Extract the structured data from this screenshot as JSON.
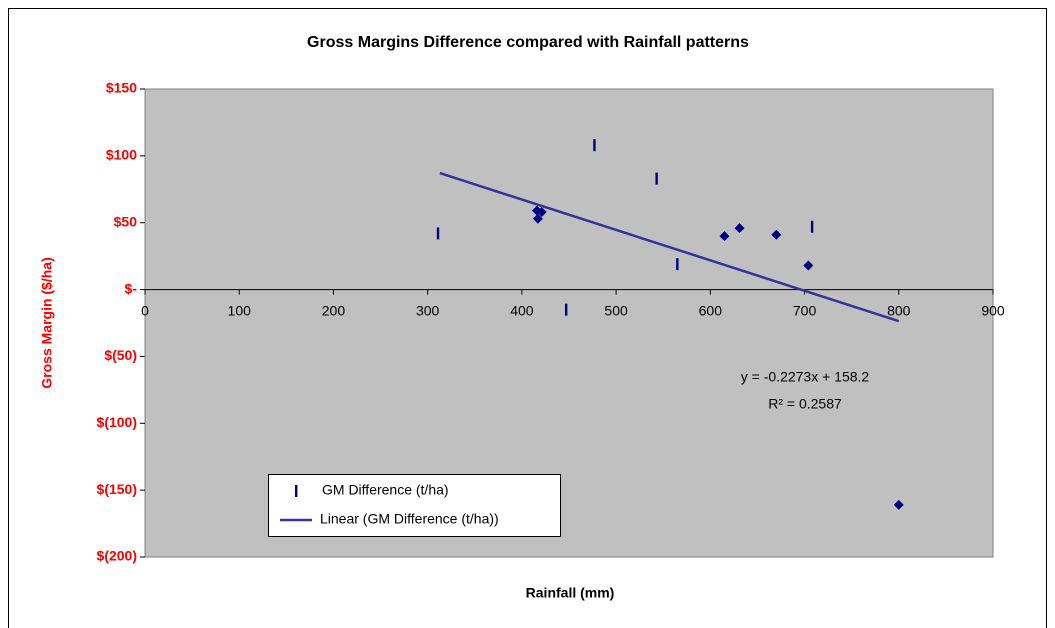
{
  "chart_data": {
    "type": "scatter",
    "title": "Gross Margins Difference compared with Rainfall patterns",
    "x_label": "Rainfall (mm)",
    "y_label": "Gross Margin ($/ha)",
    "series": [
      {
        "name": "GM Difference (t/ha)",
        "color": "#000080",
        "x": [
          311,
          416,
          421,
          417,
          447,
          477,
          543,
          565,
          615,
          631,
          670,
          704,
          708,
          800
        ],
        "values": [
          42,
          59,
          58,
          53,
          -15,
          108,
          83,
          19,
          40,
          46,
          41,
          18,
          47,
          -161
        ],
        "markers": [
          "dash",
          "diamond",
          "diamond",
          "diamond",
          "dash",
          "dash",
          "dash",
          "dash",
          "diamond",
          "diamond",
          "diamond",
          "diamond",
          "dash",
          "diamond"
        ]
      }
    ],
    "trendline": {
      "name": "Linear (GM Difference (t/ha))",
      "color": "#333399",
      "x": [
        313,
        800
      ],
      "values": [
        87.1,
        -23.6
      ]
    },
    "annotations": [
      "y = -0.2273x + 158.2",
      "R² = 0.2587"
    ],
    "xlim": [
      0,
      900
    ],
    "xticks": [
      0,
      100,
      200,
      300,
      400,
      500,
      600,
      700,
      800,
      900
    ],
    "ylim": [
      -200,
      150
    ],
    "yticks": [
      {
        "value": 150,
        "label": "$150"
      },
      {
        "value": 100,
        "label": "$100"
      },
      {
        "value": 50,
        "label": "$50"
      },
      {
        "value": 0,
        "label": "$-"
      },
      {
        "value": -50,
        "label": "$(50)"
      },
      {
        "value": -100,
        "label": "$(100)"
      },
      {
        "value": -150,
        "label": "$(150)"
      },
      {
        "value": -200,
        "label": "$(200)"
      }
    ],
    "grid": false,
    "plot_background": "#c0c0c0",
    "tick_label_color": "#ff0000"
  }
}
